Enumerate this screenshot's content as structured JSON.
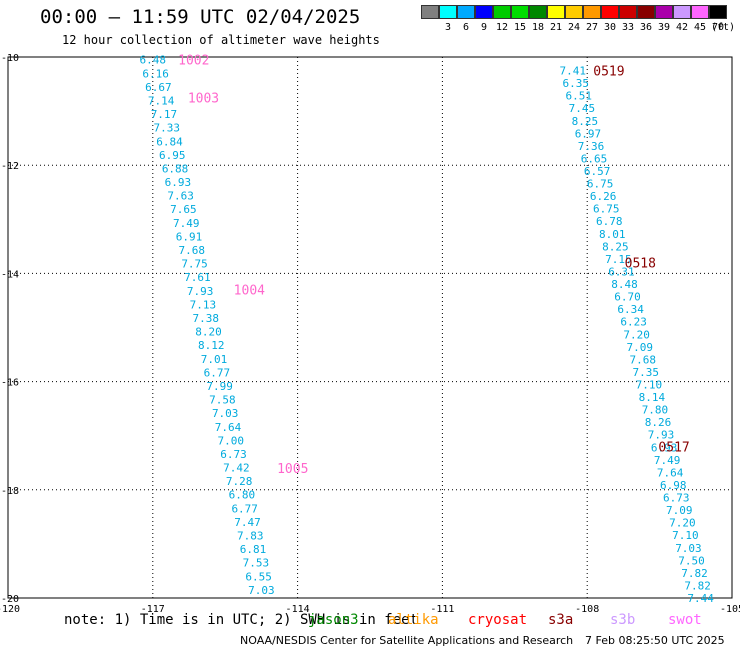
{
  "header": {
    "title": "00:00 – 11:59 UTC 02/04/2025",
    "subtitle": "12 hour collection of altimeter wave heights"
  },
  "legend": {
    "unit": "(ft)",
    "bins": [
      {
        "label": "",
        "color": "#808080"
      },
      {
        "label": "3",
        "color": "#00ffff"
      },
      {
        "label": "6",
        "color": "#00aaff"
      },
      {
        "label": "9",
        "color": "#0000ff"
      },
      {
        "label": "12",
        "color": "#00cc00"
      },
      {
        "label": "15",
        "color": "#00dd00"
      },
      {
        "label": "18",
        "color": "#008800"
      },
      {
        "label": "21",
        "color": "#ffff00"
      },
      {
        "label": "24",
        "color": "#ffcc00"
      },
      {
        "label": "27",
        "color": "#ff9900"
      },
      {
        "label": "30",
        "color": "#ff0000"
      },
      {
        "label": "33",
        "color": "#cc0000"
      },
      {
        "label": "36",
        "color": "#880000"
      },
      {
        "label": "39",
        "color": "#aa00aa"
      },
      {
        "label": "42",
        "color": "#cc99ff"
      },
      {
        "label": "45",
        "color": "#ff66ff"
      },
      {
        "label": "70",
        "color": "#000000"
      }
    ]
  },
  "map": {
    "lon_range": [
      -120,
      -105
    ],
    "lat_range": [
      -20,
      -10
    ],
    "lon_ticks": [
      "-120",
      "-117",
      "-114",
      "-111",
      "-108",
      "-105"
    ],
    "lat_ticks": [
      "-10",
      "-12",
      "-14",
      "-16",
      "-18",
      "-20"
    ],
    "value_color": "#00aadd",
    "track_a": {
      "color": "#ff66cc",
      "times": [
        {
          "label": "1002",
          "lat": -10.05,
          "lon": -116.15
        },
        {
          "label": "1003",
          "lat": -10.75,
          "lon": -115.95
        },
        {
          "label": "1004",
          "lat": -14.3,
          "lon": -115.0
        },
        {
          "label": "1005",
          "lat": -17.6,
          "lon": -114.1
        }
      ],
      "heights": [
        "6.48",
        "6.16",
        "6.67",
        "7.14",
        "7.17",
        "7.33",
        "6.84",
        "6.95",
        "6.88",
        "6.93",
        "7.63",
        "7.65",
        "7.49",
        "6.91",
        "7.68",
        "7.75",
        "7.61",
        "7.93",
        "7.13",
        "7.38",
        "8.20",
        "8.12",
        "7.01",
        "6.77",
        "7.99",
        "7.58",
        "7.03",
        "7.64",
        "7.00",
        "6.73",
        "7.42",
        "7.28",
        "6.80",
        "6.77",
        "7.47",
        "7.83",
        "6.81",
        "7.53",
        "6.55",
        "7.03"
      ],
      "lat_start": -10.05,
      "lat_end": -19.85,
      "lon_start": -117.0,
      "lon_end": -114.75
    },
    "track_b": {
      "color": "#880000",
      "times": [
        {
          "label": "0519",
          "lat": -10.25,
          "lon": -107.55
        },
        {
          "label": "0518",
          "lat": -13.8,
          "lon": -106.9
        },
        {
          "label": "0517",
          "lat": -17.2,
          "lon": -106.2
        }
      ],
      "heights": [
        "7.41",
        "6.35",
        "6.51",
        "7.45",
        "8.25",
        "6.97",
        "7.36",
        "6.65",
        "6.57",
        "6.75",
        "6.26",
        "6.75",
        "6.78",
        "8.01",
        "8.25",
        "7.15",
        "6.31",
        "8.48",
        "6.70",
        "6.34",
        "6.23",
        "7.20",
        "7.09",
        "7.68",
        "7.35",
        "7.10",
        "8.14",
        "7.80",
        "8.26",
        "7.93",
        "6.93",
        "7.49",
        "7.64",
        "6.98",
        "6.73",
        "7.09",
        "7.20",
        "7.10",
        "7.03",
        "7.50",
        "7.82",
        "7.82",
        "7.44"
      ],
      "lat_start": -10.25,
      "lat_end": -20.0,
      "lon_start": -108.3,
      "lon_end": -105.65
    }
  },
  "footer": {
    "note": "note: 1) Time is in UTC; 2) SWH is in feet",
    "satellites": [
      {
        "name": "jason3",
        "color": "#008800"
      },
      {
        "name": "altika",
        "color": "#ff9900"
      },
      {
        "name": "cryosat",
        "color": "#ff0000"
      },
      {
        "name": "s3a",
        "color": "#880000"
      },
      {
        "name": "s3b",
        "color": "#cc99ff"
      },
      {
        "name": "swot",
        "color": "#ff66ff"
      }
    ],
    "credit": "NOAA/NESDIS Center for Satellite Applications and Research",
    "timestamp": "7 Feb 08:25:50 UTC 2025"
  }
}
